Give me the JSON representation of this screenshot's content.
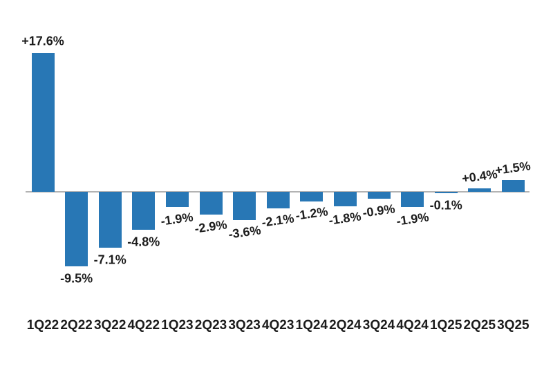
{
  "chart_data": {
    "type": "bar",
    "categories": [
      "1Q22",
      "2Q22",
      "3Q22",
      "4Q22",
      "1Q23",
      "2Q23",
      "3Q23",
      "4Q23",
      "1Q24",
      "2Q24",
      "3Q24",
      "4Q24",
      "1Q25",
      "2Q25",
      "3Q25"
    ],
    "values": [
      17.6,
      -9.5,
      -7.1,
      -4.8,
      -1.9,
      -2.9,
      -3.6,
      -2.1,
      -1.2,
      -1.8,
      -0.9,
      -1.9,
      -0.1,
      0.4,
      1.5
    ],
    "data_labels": [
      "+17.6%",
      "-9.5%",
      "-7.1%",
      "-4.8%",
      "-1.9%",
      "-2.9%",
      "-3.6%",
      "-2.1%",
      "-1.2%",
      "-1.8%",
      "-0.9%",
      "-1.9%",
      "-0.1%",
      "+0.4%",
      "+1.5%"
    ],
    "title": "",
    "xlabel": "",
    "ylabel": "",
    "ylim": [
      -12,
      20
    ],
    "grid": false,
    "legend": "none",
    "y_axis_shown": false,
    "bar_color": "#2877b5",
    "axis_line_color": "#b3b3b3",
    "label_color": "#1c1c1c",
    "label_rotation_deg": -8,
    "rotated_label_indices": [
      4,
      5,
      6,
      7,
      8,
      9,
      10,
      11,
      13,
      14
    ]
  }
}
